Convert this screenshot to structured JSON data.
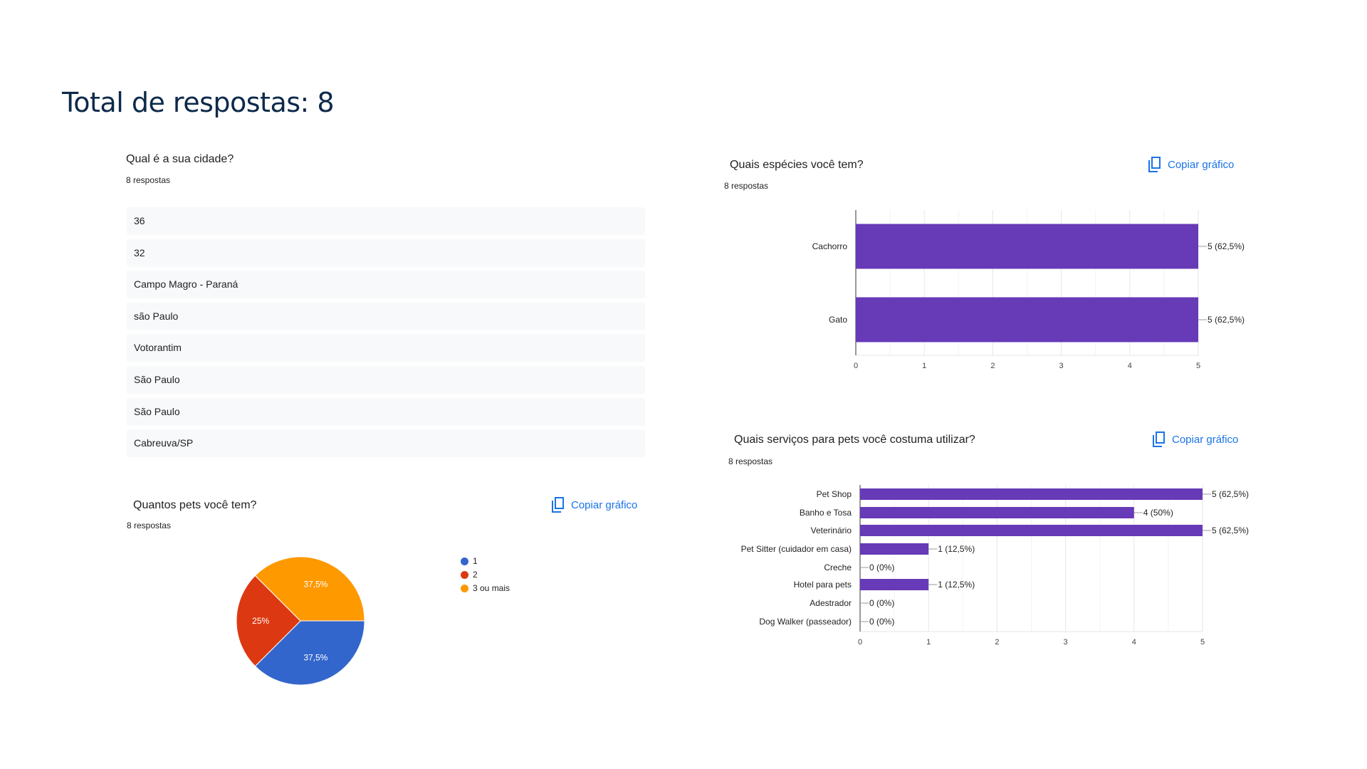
{
  "header": {
    "title": "Total de respostas: 8"
  },
  "colors": {
    "bar": "#673ab7",
    "link": "#1a73e8",
    "pie": [
      "#3366cc",
      "#dc3912",
      "#ff9900"
    ]
  },
  "copy_label": "Copiar gráfico",
  "copy_icon": "copy-icon",
  "city": {
    "question": "Qual é a sua cidade?",
    "count": "8 respostas",
    "answers": [
      "36",
      "32",
      "Campo Magro - Paraná",
      "são Paulo",
      "Votorantim",
      "São Paulo",
      "São Paulo",
      "Cabreuva/SP"
    ]
  },
  "chart_data": [
    {
      "type": "bar",
      "orientation": "horizontal",
      "title": "Quais espécies você tem?",
      "subtitle": "8 respostas",
      "categories": [
        "Cachorro",
        "Gato"
      ],
      "values": [
        5,
        5
      ],
      "data_labels": [
        "5 (62,5%)",
        "5 (62,5%)"
      ],
      "xlim": [
        0,
        5
      ],
      "ticks": [
        "0",
        "1",
        "2",
        "3",
        "4",
        "5"
      ],
      "grid": true
    },
    {
      "type": "bar",
      "orientation": "horizontal",
      "title": "Quais serviços para pets você costuma utilizar?",
      "subtitle": "8 respostas",
      "categories": [
        "Pet Shop",
        "Banho e Tosa",
        "Veterinário",
        "Pet Sitter (cuidador em casa)",
        "Creche",
        "Hotel para pets",
        "Adestrador",
        "Dog Walker (passeador)"
      ],
      "values": [
        5,
        4,
        5,
        1,
        0,
        1,
        0,
        0
      ],
      "data_labels": [
        "5 (62,5%)",
        "4 (50%)",
        "5 (62,5%)",
        "1 (12,5%)",
        "0 (0%)",
        "1 (12,5%)",
        "0 (0%)",
        "0 (0%)"
      ],
      "xlim": [
        0,
        5
      ],
      "ticks": [
        "0",
        "1",
        "2",
        "3",
        "4",
        "5"
      ],
      "grid": true
    },
    {
      "type": "pie",
      "title": "Quantos pets você tem?",
      "subtitle": "8 respostas",
      "categories": [
        "1",
        "2",
        "3 ou mais"
      ],
      "values": [
        37.5,
        25,
        37.5
      ],
      "data_labels": [
        "37,5%",
        "25%",
        "37,5%"
      ],
      "legend": "right"
    }
  ]
}
